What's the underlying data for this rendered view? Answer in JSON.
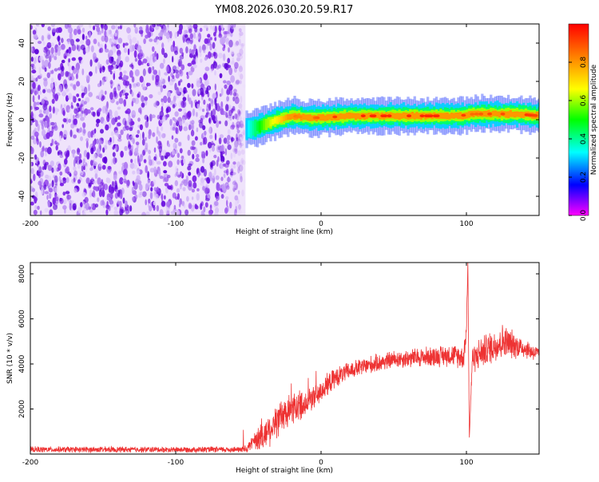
{
  "chart_data": {
    "title": "YM08.2026.030.20.59.R17",
    "spectrogram": {
      "type": "heatmap",
      "xlabel": "Height of straight line (km)",
      "ylabel": "Frequency (Hz)",
      "xlim": [
        -200,
        150
      ],
      "ylim": [
        -50,
        50
      ],
      "xticks": [
        -200,
        -100,
        0,
        100
      ],
      "xtick_labels": [
        "-200",
        "-100",
        "0",
        "100"
      ],
      "yticks": [
        -40,
        -20,
        0,
        20,
        40
      ],
      "ytick_labels": [
        "-40",
        "-20",
        "0",
        "20",
        "40"
      ],
      "noise_region_x": [
        -200,
        -52
      ],
      "ridge": {
        "x": [
          -52,
          -45,
          -38,
          -30,
          -20,
          -10,
          0,
          20,
          40,
          60,
          80,
          95,
          105,
          115,
          125,
          135,
          150
        ],
        "freq": [
          -5,
          -4,
          -2,
          0,
          2,
          1,
          1,
          2,
          2,
          2,
          2,
          2,
          3,
          3,
          3,
          3,
          2
        ],
        "peak_amplitude": [
          0.3,
          0.45,
          0.6,
          0.7,
          0.85,
          0.8,
          0.9,
          0.95,
          0.95,
          0.95,
          0.95,
          0.95,
          0.85,
          0.9,
          0.9,
          0.95,
          0.9
        ]
      }
    },
    "colorbar": {
      "label": "Normalized spectral amplitude",
      "range": [
        0,
        1
      ],
      "ticks": [
        0.0,
        0.2,
        0.4,
        0.6,
        0.8
      ],
      "tick_labels": [
        "0.0",
        "0.2",
        "0.4",
        "0.6",
        "0.8"
      ]
    },
    "snr": {
      "type": "line",
      "xlabel": "Height of straight line (km)",
      "ylabel": "SNR (10 * v/v)",
      "xlim": [
        -200,
        150
      ],
      "ylim": [
        0,
        8500
      ],
      "xticks": [
        -200,
        -100,
        0,
        100
      ],
      "xtick_labels": [
        "-200",
        "-100",
        "0",
        "100"
      ],
      "yticks": [
        2000,
        4000,
        6000,
        8000
      ],
      "ytick_labels": [
        "2000",
        "4000",
        "6000",
        "8000"
      ],
      "color": "#ee3333",
      "envelope": {
        "x": [
          -200,
          -55,
          -50,
          -40,
          -30,
          -20,
          -10,
          0,
          10,
          20,
          30,
          50,
          70,
          90,
          98,
          100,
          101,
          102,
          104,
          110,
          125,
          140,
          150
        ],
        "y": [
          200,
          200,
          300,
          800,
          1500,
          2000,
          2300,
          2800,
          3400,
          3700,
          3900,
          4200,
          4300,
          4400,
          4300,
          5500,
          8500,
          700,
          4200,
          4500,
          5000,
          4700,
          4400
        ],
        "noise_amp": [
          150,
          150,
          250,
          800,
          900,
          800,
          700,
          600,
          500,
          450,
          450,
          450,
          500,
          550,
          600,
          600,
          0,
          0,
          700,
          800,
          900,
          500,
          400
        ]
      }
    }
  }
}
